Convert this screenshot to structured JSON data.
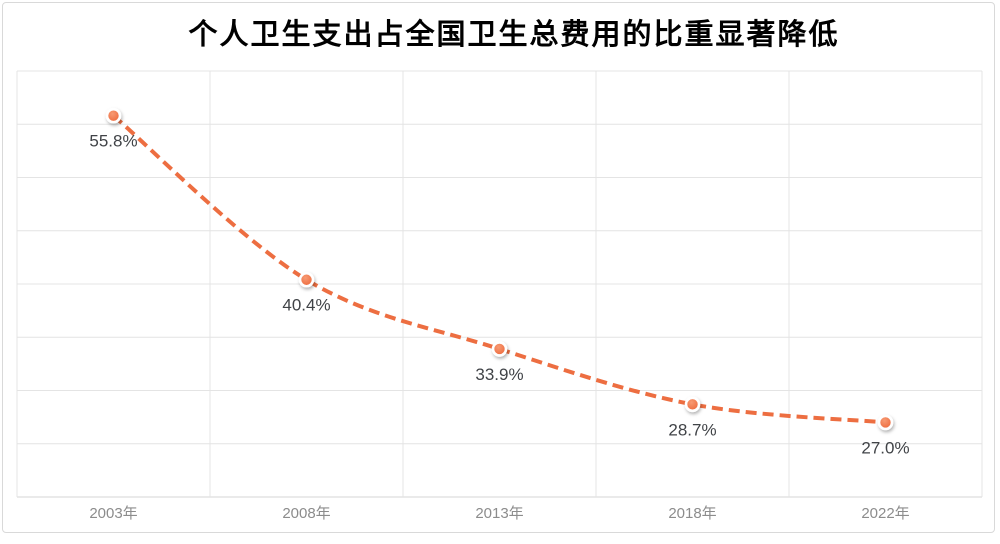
{
  "chart": {
    "title": "个人卫生支出占全国卫生总费用的比重显著降低"
  },
  "chart_data": {
    "type": "line",
    "title": "个人卫生支出占全国卫生总费用的比重显著降低",
    "categories": [
      "2003年",
      "2008年",
      "2013年",
      "2018年",
      "2022年"
    ],
    "values": [
      55.8,
      40.4,
      33.9,
      28.7,
      27.0
    ],
    "data_labels": [
      "55.8%",
      "40.4%",
      "33.9%",
      "28.7%",
      "27.0%"
    ],
    "xlabel": "",
    "ylabel": "",
    "ylim": [
      20,
      60
    ],
    "y_gridline_step": 5,
    "y_axis_labels_visible": false,
    "grid": true,
    "legend_position": "none",
    "line_style": "dashed-smooth",
    "marker": "circle-white-ring",
    "colors": {
      "line": "#ED6E41",
      "marker_fill_light": "#F79A73",
      "marker_fill_dark": "#EC6335",
      "marker_ring": "#FFFFFF",
      "gridline": "#E4E4E4",
      "axis_line": "#D6D6D6",
      "title_text": "#000000",
      "data_label_text": "#404347",
      "axis_label_text": "#8C8C8C",
      "card_border": "#D9D9D9",
      "background": "#FFFFFF"
    }
  }
}
